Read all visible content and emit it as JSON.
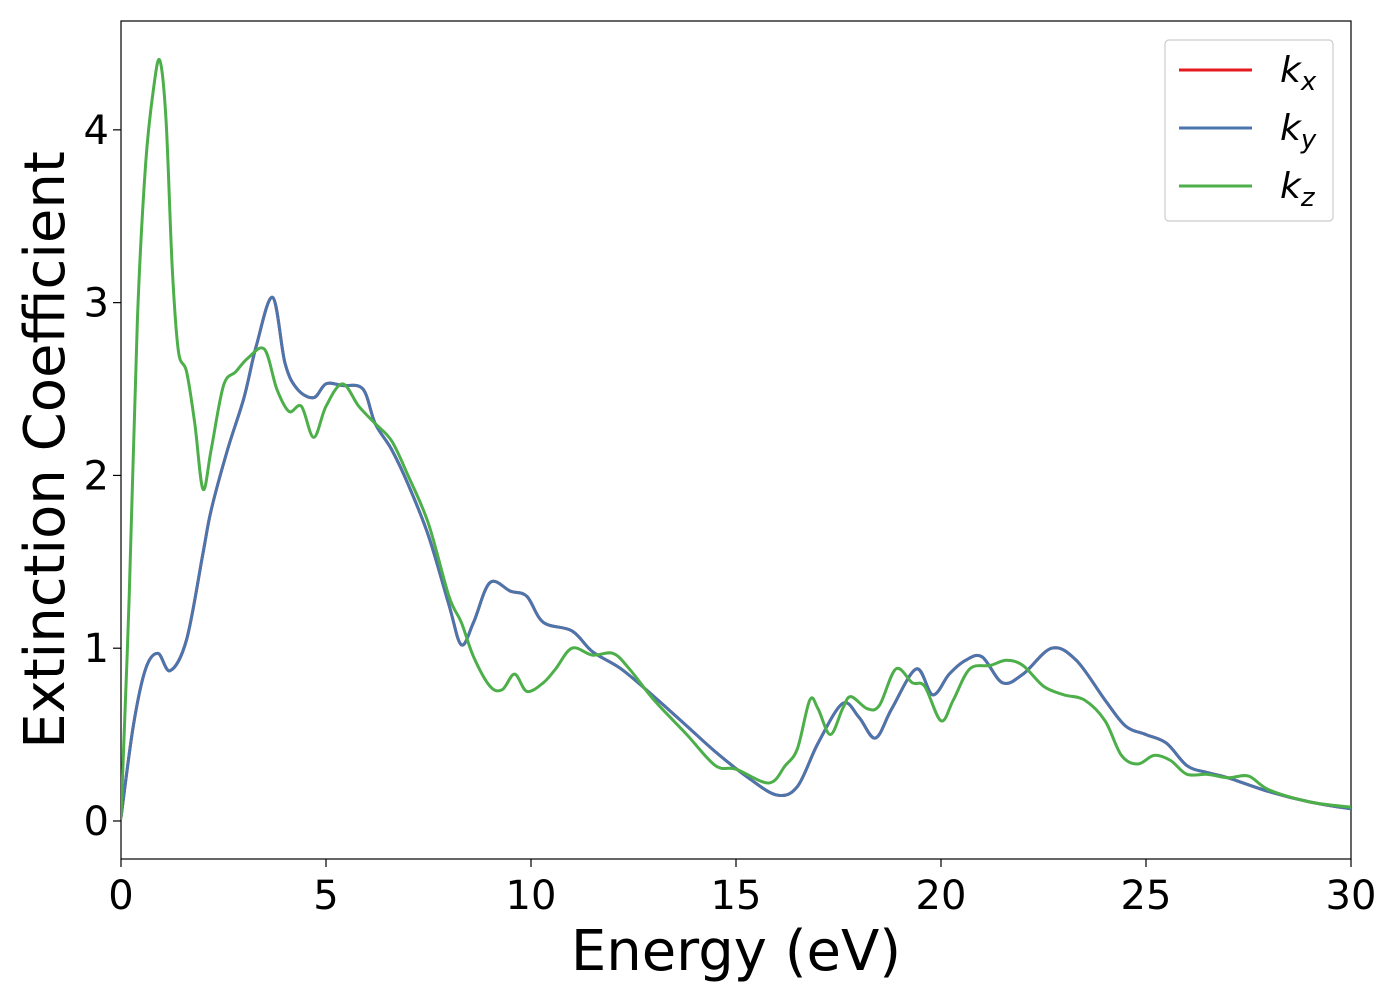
{
  "chart_data": {
    "type": "line",
    "title": "",
    "xlabel": "Energy (eV)",
    "ylabel": "Extinction Coefficient",
    "xlim": [
      0,
      30
    ],
    "ylim": [
      -0.22,
      4.63
    ],
    "xticks": [
      0,
      5,
      10,
      15,
      20,
      25,
      30
    ],
    "xtick_labels": [
      "0",
      "5",
      "10",
      "15",
      "20",
      "25",
      "30"
    ],
    "yticks": [
      0,
      1,
      2,
      3,
      4
    ],
    "ytick_labels": [
      "0",
      "1",
      "2",
      "3",
      "4"
    ],
    "grid": false,
    "legend_position": "top-right",
    "series": [
      {
        "name": "k_x",
        "label_base": "k",
        "label_sub": "x",
        "color": "#e41a1c",
        "x": [
          0,
          0.3,
          0.6,
          0.9,
          1.2,
          1.6,
          2.0,
          2.2,
          2.6,
          3.0,
          3.3,
          3.7,
          4.0,
          4.3,
          4.7,
          5.0,
          5.4,
          5.9,
          6.2,
          6.6,
          7.0,
          7.5,
          8.0,
          8.3,
          8.6,
          9.0,
          9.5,
          9.9,
          10.3,
          11.0,
          11.5,
          12.2,
          13.0,
          13.8,
          14.5,
          15.3,
          16.0,
          16.5,
          17.0,
          17.6,
          18.0,
          18.4,
          18.8,
          19.4,
          19.8,
          20.2,
          20.6,
          21.0,
          21.5,
          22.0,
          22.7,
          23.3,
          24.0,
          24.5,
          25.0,
          25.5,
          26.0,
          26.5,
          27.0,
          28.0,
          29.0,
          30.0
        ],
        "y": [
          0.02,
          0.55,
          0.88,
          0.97,
          0.87,
          1.05,
          1.55,
          1.8,
          2.15,
          2.45,
          2.75,
          3.03,
          2.65,
          2.5,
          2.45,
          2.53,
          2.52,
          2.5,
          2.3,
          2.15,
          1.95,
          1.65,
          1.25,
          1.02,
          1.15,
          1.38,
          1.33,
          1.3,
          1.15,
          1.1,
          0.98,
          0.88,
          0.72,
          0.55,
          0.4,
          0.25,
          0.15,
          0.2,
          0.45,
          0.68,
          0.6,
          0.48,
          0.65,
          0.88,
          0.73,
          0.85,
          0.93,
          0.95,
          0.8,
          0.85,
          1.0,
          0.93,
          0.7,
          0.55,
          0.5,
          0.45,
          0.32,
          0.28,
          0.25,
          0.17,
          0.11,
          0.07
        ]
      },
      {
        "name": "k_y",
        "label_base": "k",
        "label_sub": "y",
        "color": "#4a76ad",
        "x": [
          0,
          0.3,
          0.6,
          0.9,
          1.2,
          1.6,
          2.0,
          2.2,
          2.6,
          3.0,
          3.3,
          3.7,
          4.0,
          4.3,
          4.7,
          5.0,
          5.4,
          5.9,
          6.2,
          6.6,
          7.0,
          7.5,
          8.0,
          8.3,
          8.6,
          9.0,
          9.5,
          9.9,
          10.3,
          11.0,
          11.5,
          12.2,
          13.0,
          13.8,
          14.5,
          15.3,
          16.0,
          16.5,
          17.0,
          17.6,
          18.0,
          18.4,
          18.8,
          19.4,
          19.8,
          20.2,
          20.6,
          21.0,
          21.5,
          22.0,
          22.7,
          23.3,
          24.0,
          24.5,
          25.0,
          25.5,
          26.0,
          26.5,
          27.0,
          28.0,
          29.0,
          30.0
        ],
        "y": [
          0.02,
          0.55,
          0.88,
          0.97,
          0.87,
          1.05,
          1.55,
          1.8,
          2.15,
          2.45,
          2.75,
          3.03,
          2.65,
          2.5,
          2.45,
          2.53,
          2.52,
          2.5,
          2.3,
          2.15,
          1.95,
          1.65,
          1.25,
          1.02,
          1.15,
          1.38,
          1.33,
          1.3,
          1.15,
          1.1,
          0.98,
          0.88,
          0.72,
          0.55,
          0.4,
          0.25,
          0.15,
          0.2,
          0.45,
          0.68,
          0.6,
          0.48,
          0.65,
          0.88,
          0.73,
          0.85,
          0.93,
          0.95,
          0.8,
          0.85,
          1.0,
          0.93,
          0.7,
          0.55,
          0.5,
          0.45,
          0.32,
          0.28,
          0.25,
          0.17,
          0.11,
          0.07
        ]
      },
      {
        "name": "k_z",
        "label_base": "k",
        "label_sub": "z",
        "color": "#4daf4a",
        "x": [
          0,
          0.2,
          0.4,
          0.6,
          0.8,
          0.95,
          1.1,
          1.25,
          1.4,
          1.6,
          1.8,
          2.0,
          2.2,
          2.5,
          2.8,
          3.1,
          3.5,
          3.8,
          4.1,
          4.4,
          4.7,
          5.0,
          5.4,
          5.8,
          6.2,
          6.6,
          7.0,
          7.5,
          8.0,
          8.3,
          8.6,
          9.0,
          9.3,
          9.6,
          9.9,
          10.3,
          10.6,
          11.0,
          11.5,
          12.0,
          12.4,
          13.0,
          13.8,
          14.5,
          15.0,
          15.8,
          16.2,
          16.5,
          16.8,
          17.0,
          17.3,
          17.6,
          17.8,
          18.2,
          18.5,
          18.9,
          19.3,
          19.6,
          20.0,
          20.3,
          20.7,
          21.2,
          21.6,
          22.0,
          22.5,
          23.0,
          23.5,
          24.0,
          24.4,
          24.8,
          25.2,
          25.6,
          26.0,
          26.5,
          27.0,
          27.5,
          28.0,
          29.0,
          30.0
        ],
        "y": [
          0.02,
          1.3,
          2.9,
          3.8,
          4.25,
          4.4,
          4.05,
          3.2,
          2.72,
          2.6,
          2.3,
          1.92,
          2.15,
          2.52,
          2.6,
          2.68,
          2.73,
          2.5,
          2.37,
          2.4,
          2.22,
          2.4,
          2.53,
          2.4,
          2.3,
          2.2,
          2.0,
          1.72,
          1.3,
          1.15,
          0.95,
          0.78,
          0.76,
          0.85,
          0.75,
          0.8,
          0.88,
          1.0,
          0.96,
          0.97,
          0.88,
          0.7,
          0.5,
          0.32,
          0.3,
          0.22,
          0.32,
          0.42,
          0.7,
          0.65,
          0.5,
          0.65,
          0.72,
          0.65,
          0.67,
          0.88,
          0.8,
          0.78,
          0.58,
          0.7,
          0.88,
          0.9,
          0.93,
          0.9,
          0.78,
          0.73,
          0.7,
          0.58,
          0.38,
          0.33,
          0.38,
          0.35,
          0.27,
          0.27,
          0.25,
          0.26,
          0.18,
          0.11,
          0.08
        ]
      }
    ]
  }
}
